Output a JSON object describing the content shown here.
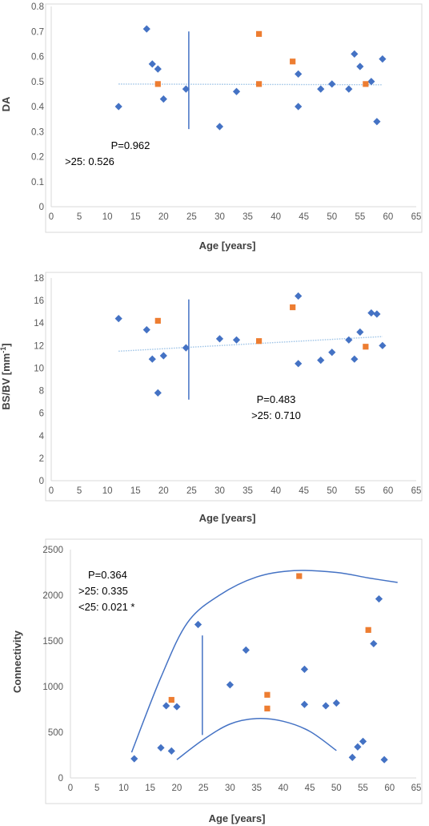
{
  "colors": {
    "diamond": "#4472c4",
    "square": "#ed7d31",
    "trend": "#9dc3e6",
    "line": "#4472c4",
    "axis": "#d9d9d9",
    "tick": "#595959"
  },
  "chart_data": [
    {
      "type": "scatter",
      "title": "",
      "xlabel": "Age [years]",
      "ylabel": "DA",
      "ylabel_sup": "",
      "xlim": [
        0,
        65
      ],
      "ylim": [
        0,
        0.8
      ],
      "x_ticks": [
        "0",
        "5",
        "10",
        "15",
        "20",
        "25",
        "30",
        "35",
        "40",
        "45",
        "50",
        "55",
        "60",
        "65"
      ],
      "y_ticks": [
        "0",
        "0.1",
        "0.2",
        "0.3",
        "0.4",
        "0.5",
        "0.6",
        "0.7",
        "0.8"
      ],
      "annotations": [
        "P=0.962",
        ">25: 0.526"
      ],
      "grid": false,
      "series": [
        {
          "marker": "diamond",
          "points": [
            [
              12,
              0.4
            ],
            [
              17,
              0.71
            ],
            [
              18,
              0.57
            ],
            [
              19,
              0.55
            ],
            [
              20,
              0.43
            ],
            [
              24,
              0.47
            ],
            [
              30,
              0.32
            ],
            [
              33,
              0.46
            ],
            [
              44,
              0.53
            ],
            [
              44,
              0.4
            ],
            [
              48,
              0.47
            ],
            [
              50,
              0.49
            ],
            [
              53,
              0.47
            ],
            [
              54,
              0.61
            ],
            [
              55,
              0.56
            ],
            [
              57,
              0.5
            ],
            [
              58,
              0.34
            ],
            [
              59,
              0.59
            ]
          ]
        },
        {
          "marker": "square",
          "points": [
            [
              19,
              0.49
            ],
            [
              37,
              0.69
            ],
            [
              37,
              0.49
            ],
            [
              43,
              0.58
            ],
            [
              56,
              0.49
            ]
          ]
        }
      ],
      "trendline": [
        [
          12,
          0.49
        ],
        [
          59,
          0.487
        ]
      ],
      "vertical_line": {
        "x": 24.5,
        "y": [
          0.31,
          0.7
        ]
      }
    },
    {
      "type": "scatter",
      "title": "",
      "xlabel": "Age [years]",
      "ylabel": "BS/BV [mm",
      "ylabel_sup": "-1",
      "ylabel_end": "]",
      "xlim": [
        0,
        65
      ],
      "ylim": [
        0,
        18
      ],
      "x_ticks": [
        "0",
        "5",
        "10",
        "15",
        "20",
        "25",
        "30",
        "35",
        "40",
        "45",
        "50",
        "55",
        "60",
        "65"
      ],
      "y_ticks": [
        "0",
        "2",
        "4",
        "6",
        "8",
        "10",
        "12",
        "14",
        "16",
        "18"
      ],
      "annotations": [
        "P=0.483",
        ">25: 0.710"
      ],
      "grid": false,
      "series": [
        {
          "marker": "diamond",
          "points": [
            [
              12,
              14.4
            ],
            [
              17,
              13.4
            ],
            [
              18,
              10.8
            ],
            [
              19,
              7.8
            ],
            [
              20,
              11.1
            ],
            [
              24,
              11.8
            ],
            [
              30,
              12.6
            ],
            [
              33,
              12.5
            ],
            [
              44,
              16.4
            ],
            [
              44,
              10.4
            ],
            [
              48,
              10.7
            ],
            [
              50,
              11.4
            ],
            [
              53,
              12.5
            ],
            [
              54,
              10.8
            ],
            [
              55,
              13.2
            ],
            [
              57,
              14.9
            ],
            [
              58,
              14.8
            ],
            [
              59,
              12.0
            ]
          ]
        },
        {
          "marker": "square",
          "points": [
            [
              19,
              14.2
            ],
            [
              37,
              12.4
            ],
            [
              43,
              15.4
            ],
            [
              56,
              11.9
            ]
          ]
        }
      ],
      "trendline": [
        [
          12,
          11.5
        ],
        [
          59,
          12.8
        ]
      ],
      "vertical_line": {
        "x": 24.5,
        "y": [
          7.2,
          16.1
        ]
      }
    },
    {
      "type": "scatter",
      "title": "",
      "xlabel": "Age [years]",
      "ylabel": "Connectivity",
      "ylabel_sup": "",
      "xlim": [
        0,
        65
      ],
      "ylim": [
        0,
        2500
      ],
      "x_ticks": [
        "0",
        "5",
        "10",
        "15",
        "20",
        "25",
        "30",
        "35",
        "40",
        "45",
        "50",
        "55",
        "60",
        "65"
      ],
      "y_ticks": [
        "0",
        "500",
        "1000",
        "1500",
        "2000",
        "2500"
      ],
      "annotations": [
        "P=0.364",
        ">25: 0.335",
        "<25: 0.021 *"
      ],
      "grid": false,
      "series": [
        {
          "marker": "diamond",
          "points": [
            [
              12,
              210
            ],
            [
              17,
              330
            ],
            [
              18,
              790
            ],
            [
              19,
              295
            ],
            [
              20,
              780
            ],
            [
              24,
              1680
            ],
            [
              30,
              1020
            ],
            [
              33,
              1400
            ],
            [
              44,
              1190
            ],
            [
              44,
              805
            ],
            [
              48,
              790
            ],
            [
              50,
              820
            ],
            [
              53,
              225
            ],
            [
              54,
              340
            ],
            [
              55,
              400
            ],
            [
              57,
              1470
            ],
            [
              58,
              1960
            ],
            [
              59,
              200
            ]
          ]
        },
        {
          "marker": "square",
          "points": [
            [
              19,
              855
            ],
            [
              37,
              910
            ],
            [
              37,
              760
            ],
            [
              43,
              2210
            ],
            [
              56,
              1620
            ]
          ]
        }
      ],
      "upper_curve": [
        [
          11.5,
          280
        ],
        [
          17,
          1100
        ],
        [
          22,
          1700
        ],
        [
          28,
          2000
        ],
        [
          35,
          2200
        ],
        [
          42,
          2270
        ],
        [
          50,
          2250
        ],
        [
          56,
          2190
        ],
        [
          61.5,
          2140
        ]
      ],
      "lower_curve": [
        [
          20,
          200
        ],
        [
          25,
          420
        ],
        [
          30,
          590
        ],
        [
          35,
          650
        ],
        [
          40,
          620
        ],
        [
          45,
          510
        ],
        [
          50,
          300
        ]
      ],
      "vertical_line": {
        "x": 24.8,
        "y": [
          470,
          1560
        ]
      }
    }
  ]
}
